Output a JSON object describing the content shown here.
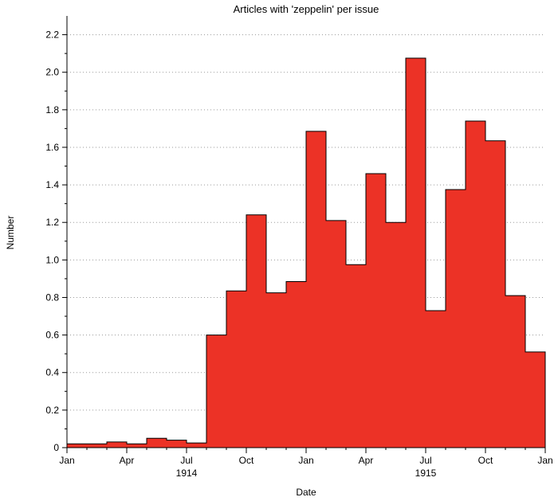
{
  "chart_data": {
    "type": "bar",
    "title": "Articles with 'zeppelin' per issue",
    "xlabel": "Date",
    "ylabel": "Number",
    "x_range": [
      "1914-01",
      "1916-01"
    ],
    "ylim": [
      0,
      2.3
    ],
    "y_ticks": [
      {
        "value": 0,
        "label": "0"
      },
      {
        "value": 0.2,
        "label": "0.2"
      },
      {
        "value": 0.4,
        "label": "0.4"
      },
      {
        "value": 0.6,
        "label": "0.6"
      },
      {
        "value": 0.8,
        "label": "0.8"
      },
      {
        "value": 1.0,
        "label": "1.0"
      },
      {
        "value": 1.2,
        "label": "1.2"
      },
      {
        "value": 1.4,
        "label": "1.4"
      },
      {
        "value": 1.6,
        "label": "1.6"
      },
      {
        "value": 1.8,
        "label": "1.8"
      },
      {
        "value": 2.0,
        "label": "2.0"
      },
      {
        "value": 2.2,
        "label": "2.2"
      }
    ],
    "x_ticks": [
      {
        "month": "1914-01",
        "label": "Jan"
      },
      {
        "month": "1914-04",
        "label": "Apr"
      },
      {
        "month": "1914-07",
        "label": "Jul"
      },
      {
        "month": "1914-10",
        "label": "Oct"
      },
      {
        "month": "1915-01",
        "label": "Jan"
      },
      {
        "month": "1915-04",
        "label": "Apr"
      },
      {
        "month": "1915-07",
        "label": "Jul"
      },
      {
        "month": "1915-10",
        "label": "Oct"
      },
      {
        "month": "1916-01",
        "label": "Jan"
      }
    ],
    "year_labels": [
      {
        "month": "1914-07",
        "label": "1914"
      },
      {
        "month": "1915-07",
        "label": "1915"
      }
    ],
    "grid": "horizontal-dotted",
    "bar_color": "#ec3226",
    "months": [
      "1914-01",
      "1914-02",
      "1914-03",
      "1914-04",
      "1914-05",
      "1914-06",
      "1914-07",
      "1914-08",
      "1914-09",
      "1914-10",
      "1914-11",
      "1914-12",
      "1915-01",
      "1915-02",
      "1915-03",
      "1915-04",
      "1915-05",
      "1915-06",
      "1915-07",
      "1915-08",
      "1915-09",
      "1915-10",
      "1915-11",
      "1915-12"
    ],
    "values": [
      0.02,
      0.02,
      0.03,
      0.02,
      0.05,
      0.04,
      0.025,
      0.6,
      0.835,
      1.24,
      0.825,
      0.885,
      1.685,
      1.21,
      0.975,
      1.46,
      1.2,
      2.075,
      0.73,
      1.375,
      1.74,
      1.635,
      0.81,
      0.51
    ]
  }
}
